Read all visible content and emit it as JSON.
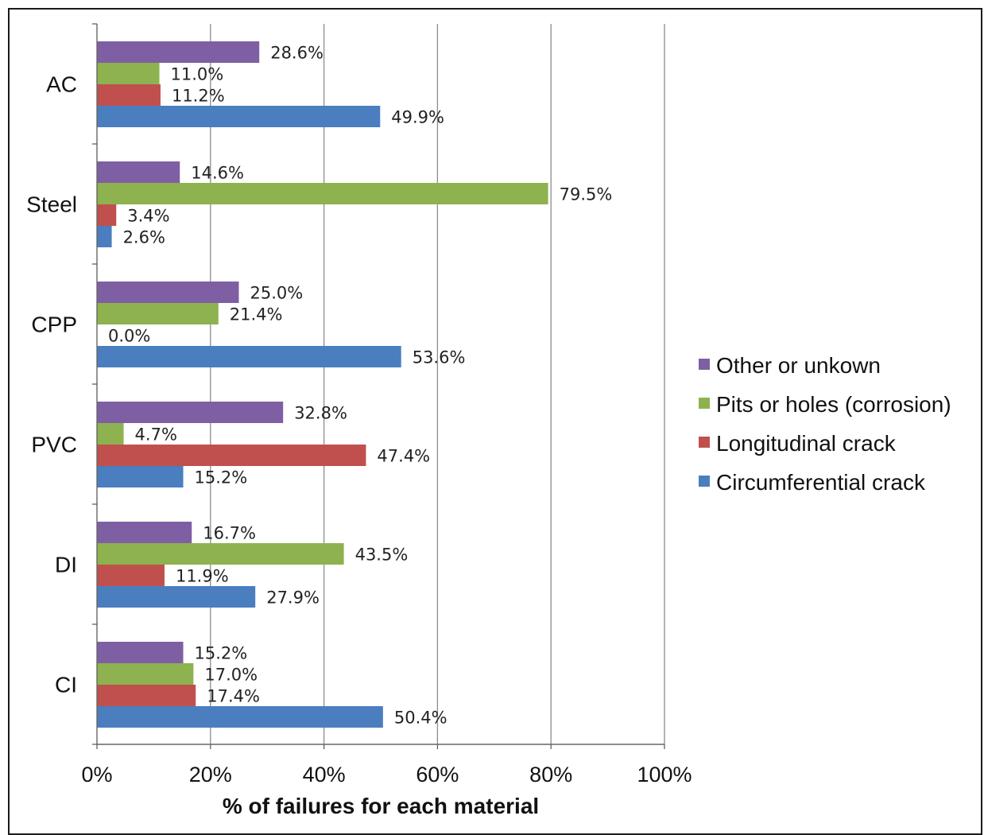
{
  "chart_data": {
    "type": "bar",
    "orientation": "horizontal",
    "categories": [
      "AC",
      "Steel",
      "CPP",
      "PVC",
      "DI",
      "CI"
    ],
    "series": [
      {
        "name": "Other or unkown",
        "color": "#7f5fa3",
        "values": [
          28.6,
          14.6,
          25.0,
          32.8,
          16.7,
          15.2
        ],
        "labels": [
          "28.6%",
          "14.6%",
          "25.0%",
          "32.8%",
          "16.7%",
          "15.2%"
        ]
      },
      {
        "name": "Pits or holes (corrosion)",
        "color": "#8db24f",
        "values": [
          11.0,
          79.5,
          21.4,
          4.7,
          43.5,
          17.0
        ],
        "labels": [
          "11.0%",
          "79.5%",
          "21.4%",
          "4.7%",
          "43.5%",
          "17.0%"
        ]
      },
      {
        "name": "Longitudinal crack",
        "color": "#c0504d",
        "values": [
          11.2,
          3.4,
          0.0,
          47.4,
          11.9,
          17.4
        ],
        "labels": [
          "11.2%",
          "3.4%",
          "0.0%",
          "47.4%",
          "11.9%",
          "17.4%"
        ]
      },
      {
        "name": "Circumferential crack",
        "color": "#4a7ebf",
        "values": [
          49.9,
          2.6,
          53.6,
          15.2,
          27.9,
          50.4
        ],
        "labels": [
          "49.9%",
          "2.6%",
          "53.6%",
          "15.2%",
          "27.9%",
          "50.4%"
        ]
      }
    ],
    "xlim": [
      0,
      100
    ],
    "xticks": [
      "0%",
      "20%",
      "40%",
      "60%",
      "80%",
      "100%"
    ],
    "xlabel": "% of failures for each material",
    "ylabel": "",
    "title": "",
    "grid": "vertical",
    "legend": "right"
  }
}
